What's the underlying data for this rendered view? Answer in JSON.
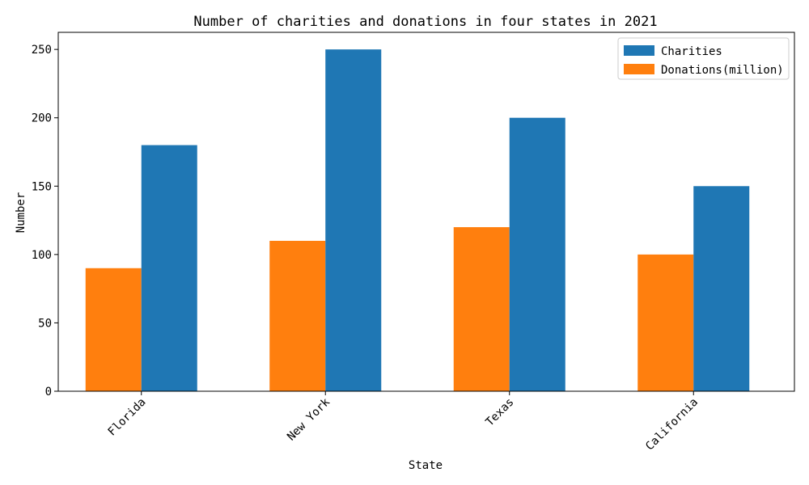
{
  "chart_data": {
    "type": "bar",
    "title": "Number of charities and donations in four states in 2021",
    "xlabel": "State",
    "ylabel": "Number",
    "categories": [
      "Florida",
      "New York",
      "Texas",
      "California"
    ],
    "series": [
      {
        "name": "Donations(million)",
        "values": [
          90,
          110,
          120,
          100
        ],
        "color": "#ff7f0e"
      },
      {
        "name": "Charities",
        "values": [
          180,
          250,
          200,
          150
        ],
        "color": "#1f77b4"
      }
    ],
    "ylim": [
      0,
      262.5
    ],
    "yticks": [
      0,
      50,
      100,
      150,
      200,
      250
    ],
    "legend": {
      "placement": "top-right",
      "order": [
        "Charities",
        "Donations(million)"
      ]
    },
    "grid": false
  }
}
